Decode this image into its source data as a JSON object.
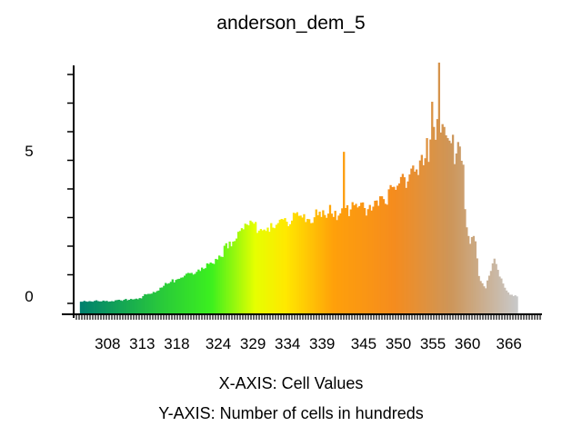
{
  "chart_data": {
    "type": "bar",
    "title": "anderson_dem_5",
    "xlabel": "X-AXIS: Cell Values",
    "ylabel": "Y-AXIS: Number of cells in hundreds",
    "x_ticks": [
      "308",
      "313",
      "318",
      "324",
      "329",
      "334",
      "339",
      "345",
      "350",
      "355",
      "360",
      "366"
    ],
    "y_ticks": [
      "0",
      "5"
    ],
    "xlim": [
      303.5,
      370.5
    ],
    "ylim": [
      -0.4,
      8.5
    ],
    "grid": false,
    "legend": "none",
    "bar_start": 304.0,
    "bar_step": 0.25,
    "values": [
      0.05,
      0.05,
      0.08,
      0.06,
      0.05,
      0.07,
      0.06,
      0.05,
      0.08,
      0.1,
      0.07,
      0.06,
      0.06,
      0.09,
      0.07,
      0.08,
      0.05,
      0.06,
      0.07,
      0.06,
      0.1,
      0.11,
      0.12,
      0.1,
      0.08,
      0.12,
      0.15,
      0.1,
      0.12,
      0.15,
      0.13,
      0.14,
      0.16,
      0.14,
      0.18,
      0.17,
      0.25,
      0.32,
      0.31,
      0.33,
      0.33,
      0.34,
      0.4,
      0.38,
      0.43,
      0.45,
      0.55,
      0.56,
      0.62,
      0.72,
      0.69,
      0.71,
      0.76,
      0.85,
      0.74,
      0.83,
      0.86,
      0.87,
      0.91,
      0.92,
      0.98,
      1.05,
      1.08,
      1.07,
      1.08,
      1.02,
      1.05,
      1.12,
      1.2,
      1.15,
      1.27,
      1.22,
      1.25,
      1.42,
      1.4,
      1.45,
      1.42,
      1.4,
      1.58,
      1.56,
      1.7,
      1.66,
      1.65,
      2.05,
      2.14,
      1.96,
      2.2,
      2.03,
      2.2,
      2.22,
      2.31,
      2.55,
      2.58,
      2.68,
      2.64,
      2.84,
      2.81,
      2.78,
      2.95,
      2.9,
      2.84,
      2.9,
      2.51,
      2.59,
      2.65,
      2.6,
      2.63,
      2.58,
      2.7,
      2.55,
      2.86,
      2.7,
      2.68,
      2.8,
      2.86,
      2.98,
      3.01,
      2.99,
      3.04,
      2.91,
      2.75,
      2.82,
      2.95,
      3.23,
      3.21,
      3.25,
      3.12,
      3.13,
      3.06,
      3.18,
      2.9,
      3.01,
      3.0,
      2.86,
      2.87,
      3.07,
      3.35,
      3.14,
      3.27,
      3.08,
      3.32,
      3.15,
      3.05,
      3.2,
      3.51,
      3.2,
      3.08,
      3.3,
      2.97,
      3.13,
      3.21,
      3.39,
      5.41,
      3.4,
      3.5,
      3.11,
      3.35,
      3.61,
      3.5,
      3.55,
      3.42,
      3.47,
      3.59,
      3.6,
      3.4,
      3.13,
      3.36,
      3.51,
      3.31,
      3.45,
      3.66,
      3.67,
      3.48,
      3.82,
      3.82,
      3.72,
      3.55,
      3.52,
      4.07,
      4.22,
      4.15,
      4.16,
      4.05,
      4.2,
      4.28,
      4.51,
      4.62,
      4.5,
      4.12,
      4.35,
      4.6,
      4.81,
      4.92,
      4.7,
      4.78,
      4.58,
      5.1,
      5.3,
      4.93,
      5.18,
      5.9,
      5.05,
      5.85,
      7.2,
      6.3,
      5.84,
      6.58,
      8.6,
      6.1,
      6.4,
      6.3,
      6.0,
      5.9,
      5.81,
      5.72,
      6.02,
      4.97,
      5.35,
      5.76,
      5.6,
      5.09,
      4.95,
      3.36,
      2.71,
      2.4,
      2.12,
      2.36,
      2.4,
      2.21,
      1.6,
      0.97,
      0.79,
      0.71,
      0.6,
      0.53,
      0.81,
      0.98,
      1.15,
      1.42,
      1.59,
      1.4,
      1.19,
      0.95,
      0.88,
      0.7,
      0.55,
      0.45,
      0.38,
      0.3,
      0.3,
      0.25,
      0.28,
      0.24
    ]
  }
}
